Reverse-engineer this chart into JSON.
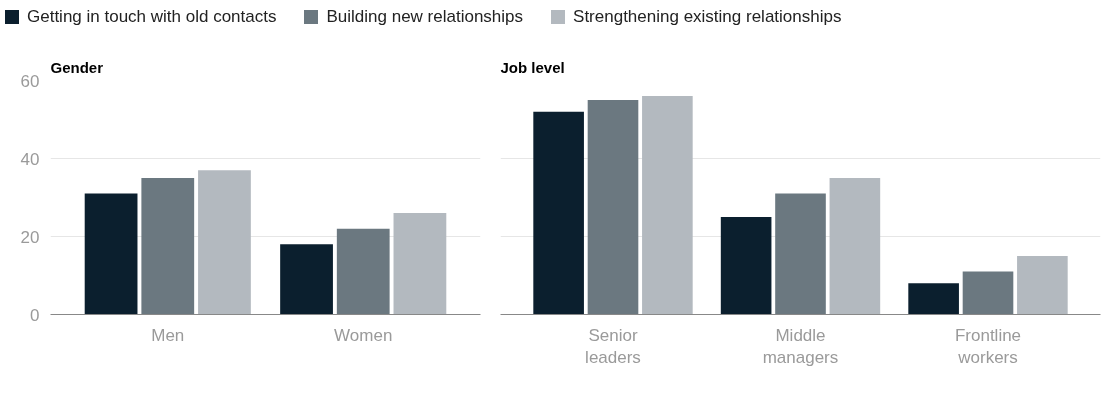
{
  "chart_data": [
    {
      "type": "bar",
      "title": "Gender",
      "categories": [
        "Men",
        "Women"
      ],
      "series": [
        {
          "name": "Getting in touch with old contacts",
          "color": "#0b1f2e",
          "values": [
            31,
            18
          ]
        },
        {
          "name": "Building new relationships",
          "color": "#6b7880",
          "values": [
            35,
            22
          ]
        },
        {
          "name": "Strengthening existing relationships",
          "color": "#b3b9bf",
          "values": [
            37,
            26
          ]
        }
      ],
      "ylim": [
        0,
        60
      ],
      "yticks": [
        0,
        20,
        40,
        60
      ],
      "grid": "y",
      "legend": "top"
    },
    {
      "type": "bar",
      "title": "Job level",
      "categories": [
        "Senior leaders",
        "Middle managers",
        "Frontline workers"
      ],
      "series": [
        {
          "color": "#0b1f2e",
          "values": [
            52,
            25,
            8
          ]
        },
        {
          "color": "#6b7880",
          "values": [
            55,
            31,
            11
          ]
        },
        {
          "color": "#b3b9bf",
          "values": [
            56,
            35,
            15
          ]
        }
      ],
      "ylim": [
        0,
        60
      ],
      "yticks": [
        0,
        20,
        40,
        60
      ],
      "grid": "y",
      "tick_labels": "x"
    }
  ]
}
